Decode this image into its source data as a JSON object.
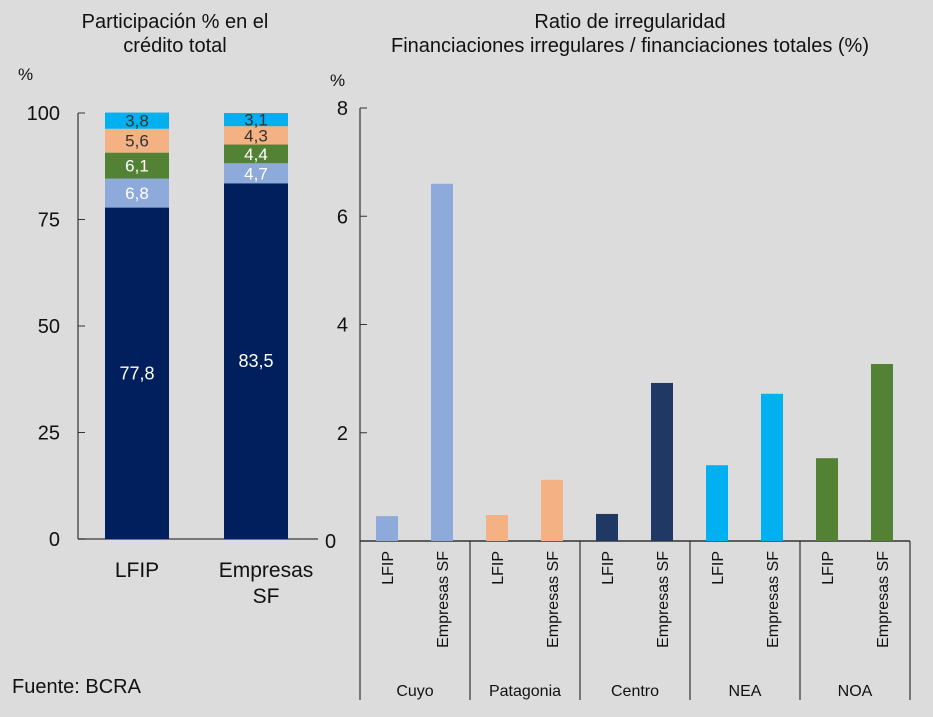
{
  "source": "Fuente: BCRA",
  "chart_data": [
    {
      "type": "bar",
      "stacked": true,
      "title": "Participación % en el crédito total",
      "title_lines": [
        "Participación % en el",
        "crédito total"
      ],
      "ylabel": "%",
      "ylim": [
        0,
        100
      ],
      "yticks": [
        0,
        25,
        50,
        75,
        100
      ],
      "categories": [
        [
          "LFIP"
        ],
        [
          "Empresas",
          "SF"
        ]
      ],
      "series": [
        {
          "name": "Centro",
          "color": "#001f5c",
          "label_color": "#ffffff",
          "values": [
            77.8,
            83.5
          ],
          "labels": [
            "77,8",
            "83,5"
          ]
        },
        {
          "name": "Cuyo",
          "color": "#8eaadb",
          "label_color": "#ffffff",
          "values": [
            6.8,
            4.7
          ],
          "labels": [
            "6,8",
            "4,7"
          ]
        },
        {
          "name": "NOA",
          "color": "#548235",
          "label_color": "#ffffff",
          "values": [
            6.1,
            4.4
          ],
          "labels": [
            "6,1",
            "4,4"
          ]
        },
        {
          "name": "Patagonia",
          "color": "#f4b183",
          "label_color": "#333333",
          "values": [
            5.6,
            4.3
          ],
          "labels": [
            "5,6",
            "4,3"
          ]
        },
        {
          "name": "NEA",
          "color": "#00b0f0",
          "label_color": "#333333",
          "values": [
            3.8,
            3.1
          ],
          "labels": [
            "3,8",
            "3,1"
          ]
        }
      ]
    },
    {
      "type": "bar",
      "title": "Ratio de irregularidad",
      "subtitle": "Financiaciones irregulares / financiaciones totales (%)",
      "ylabel": "%",
      "ylim": [
        0,
        8
      ],
      "yticks": [
        0,
        2,
        4,
        6,
        8
      ],
      "groups": [
        {
          "name": "Cuyo",
          "color": "#8eaadb",
          "categories": [
            "LFIP",
            "Empresas SF"
          ],
          "values": [
            0.46,
            6.6
          ]
        },
        {
          "name": "Patagonia",
          "color": "#f4b183",
          "categories": [
            "LFIP",
            "Empresas SF"
          ],
          "values": [
            0.48,
            1.13
          ]
        },
        {
          "name": "Centro",
          "color": "#1f3864",
          "categories": [
            "LFIP",
            "Empresas SF"
          ],
          "values": [
            0.5,
            2.92
          ]
        },
        {
          "name": "NEA",
          "color": "#00b0f0",
          "categories": [
            "LFIP",
            "Empresas SF"
          ],
          "values": [
            1.4,
            2.72
          ]
        },
        {
          "name": "NOA",
          "color": "#548235",
          "categories": [
            "LFIP",
            "Empresas SF"
          ],
          "values": [
            1.53,
            3.27
          ]
        }
      ]
    }
  ]
}
